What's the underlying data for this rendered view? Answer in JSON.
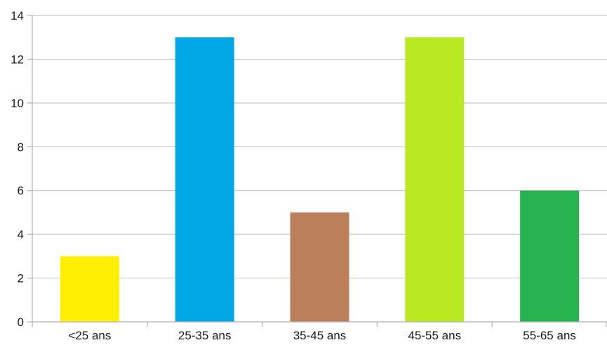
{
  "chart_data": {
    "type": "bar",
    "title": "",
    "xlabel": "",
    "ylabel": "",
    "categories": [
      "<25 ans",
      "25-35 ans",
      "35-45 ans",
      "45-55 ans",
      "55-65 ans"
    ],
    "values": [
      3,
      13,
      5,
      13,
      6
    ],
    "colors": [
      "#ffef00",
      "#00a9e6",
      "#bb7f5b",
      "#b9e921",
      "#27b450"
    ],
    "ylim": [
      0,
      14
    ],
    "yticks": [
      0,
      2,
      4,
      6,
      8,
      10,
      12,
      14
    ],
    "grid": true,
    "legend": "none"
  }
}
